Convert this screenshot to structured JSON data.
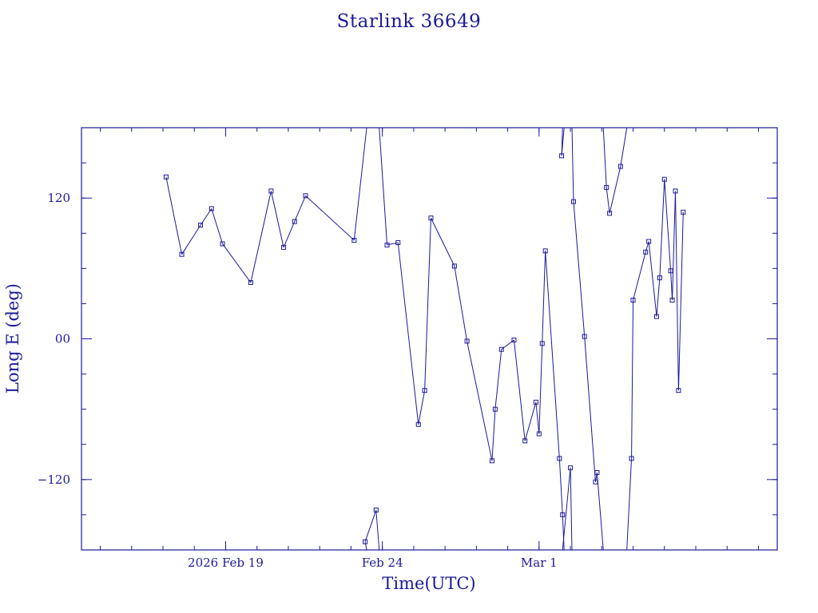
{
  "chart_data": {
    "type": "line",
    "title": "Starlink 36649",
    "xlabel": "Time(UTC)",
    "ylabel": "Long E (deg)",
    "xlim": [
      14.4,
      36.6
    ],
    "ylim": [
      -180,
      180
    ],
    "yticks": [
      -120,
      0,
      120
    ],
    "ytick_labels": [
      "−120",
      "00",
      "120"
    ],
    "xticks": [
      {
        "x": 19,
        "label": "2026 Feb 19"
      },
      {
        "x": 24,
        "label": "Feb 24"
      },
      {
        "x": 29,
        "label": "Mar  1"
      }
    ],
    "x_unit": "days since 2026 Feb 0 (Feb 19 = 19, Mar 1 = 29)",
    "color": "#1a1a9a",
    "grid": false,
    "legend": "none",
    "series": [
      {
        "name": "Starlink 36649",
        "points": [
          [
            17.1,
            138
          ],
          [
            17.6,
            72
          ],
          [
            18.2,
            97
          ],
          [
            18.55,
            111
          ],
          [
            18.9,
            81
          ],
          [
            19.8,
            48
          ],
          [
            20.45,
            126
          ],
          [
            20.85,
            78
          ],
          [
            21.2,
            100
          ],
          [
            21.55,
            122
          ],
          [
            23.1,
            84
          ],
          [
            23.5,
            180
          ],
          [
            23.5,
            -180
          ],
          [
            23.45,
            -173
          ],
          [
            23.8,
            -146
          ],
          [
            23.9,
            -180
          ],
          [
            23.9,
            180
          ],
          [
            24.15,
            80
          ],
          [
            24.5,
            82
          ],
          [
            25.15,
            -73
          ],
          [
            25.35,
            -44
          ],
          [
            25.55,
            103
          ],
          [
            26.3,
            62
          ],
          [
            26.7,
            -2
          ],
          [
            27.5,
            -104
          ],
          [
            27.6,
            -60
          ],
          [
            27.8,
            -9
          ],
          [
            28.2,
            -1
          ],
          [
            28.55,
            -87
          ],
          [
            28.9,
            -54
          ],
          [
            29.0,
            -81
          ],
          [
            29.1,
            -4
          ],
          [
            29.2,
            75
          ],
          [
            29.65,
            -102
          ],
          [
            29.75,
            -150
          ],
          [
            29.8,
            -180
          ],
          [
            29.8,
            180
          ],
          [
            29.72,
            156
          ],
          [
            29.75,
            180
          ],
          [
            29.75,
            -180
          ],
          [
            30.0,
            -110
          ],
          [
            30.05,
            -180
          ],
          [
            30.05,
            180
          ],
          [
            30.1,
            117
          ],
          [
            30.45,
            2
          ],
          [
            30.8,
            -122
          ],
          [
            30.85,
            -114
          ],
          [
            31.05,
            -180
          ],
          [
            31.05,
            180
          ],
          [
            31.15,
            129
          ],
          [
            31.25,
            107
          ],
          [
            31.6,
            147
          ],
          [
            31.8,
            180
          ],
          [
            31.8,
            -180
          ],
          [
            31.95,
            -102
          ],
          [
            32.0,
            33
          ],
          [
            32.4,
            74
          ],
          [
            32.5,
            83
          ],
          [
            32.75,
            19
          ],
          [
            32.85,
            52
          ],
          [
            33.0,
            136
          ],
          [
            33.2,
            58
          ],
          [
            33.25,
            33
          ],
          [
            33.35,
            126
          ],
          [
            33.45,
            -44
          ],
          [
            33.6,
            108
          ]
        ]
      }
    ]
  }
}
